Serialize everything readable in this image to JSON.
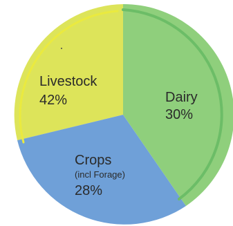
{
  "chart_data": {
    "type": "pie",
    "title": "",
    "slices": [
      {
        "label": "Dairy",
        "sublabel": "",
        "value": 30,
        "value_text": "30%",
        "color": "#8fcf7c",
        "edge_color": "#6cbd67"
      },
      {
        "label": "Crops",
        "sublabel": "(incl Forage)",
        "value": 28,
        "value_text": "28%",
        "color": "#6fa0d8",
        "edge_color": "#5b8fcb"
      },
      {
        "label": "Livestock",
        "sublabel": "",
        "value": 42,
        "value_text": "42%",
        "color": "#dde45a",
        "edge_color": "#eaea3f"
      }
    ]
  }
}
